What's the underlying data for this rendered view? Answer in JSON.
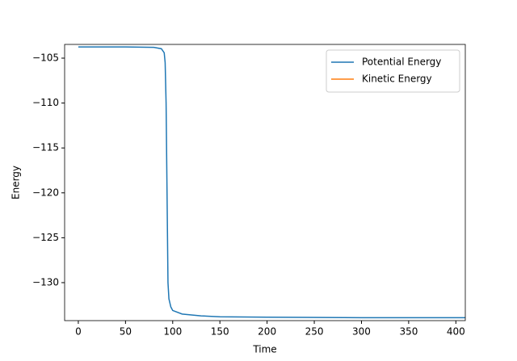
{
  "chart_data": {
    "type": "line",
    "x_label": "Time",
    "y_label": "Energy",
    "x": [
      0,
      50,
      80,
      88,
      91,
      92,
      93,
      94,
      95,
      96,
      98,
      100,
      110,
      130,
      150,
      200,
      300,
      410
    ],
    "series": [
      {
        "name": "Potential Energy",
        "color": "#1f77b4",
        "values": [
          -103.75,
          -103.75,
          -103.8,
          -103.95,
          -104.4,
          -105.5,
          -110,
          -120,
          -130,
          -131.8,
          -132.7,
          -133.1,
          -133.5,
          -133.7,
          -133.8,
          -133.85,
          -133.9,
          -133.9
        ]
      },
      {
        "name": "Kinetic Energy",
        "color": "#ff7f0e",
        "values": [
          null,
          null,
          null,
          null,
          null,
          null,
          null,
          null,
          null,
          null,
          null,
          null,
          null,
          null,
          null,
          null,
          null,
          null
        ]
      }
    ],
    "xlim": [
      -14.5,
      410
    ],
    "ylim": [
      -134.23,
      -103.47
    ],
    "xticks": [
      0,
      50,
      100,
      150,
      200,
      250,
      300,
      350,
      400
    ],
    "yticks": [
      {
        "value": -105,
        "label": "−105"
      },
      {
        "value": -110,
        "label": "−110"
      },
      {
        "value": -115,
        "label": "−115"
      },
      {
        "value": -120,
        "label": "−120"
      },
      {
        "value": -125,
        "label": "−125"
      },
      {
        "value": -130,
        "label": "−130"
      }
    ],
    "legend": "upper right"
  }
}
